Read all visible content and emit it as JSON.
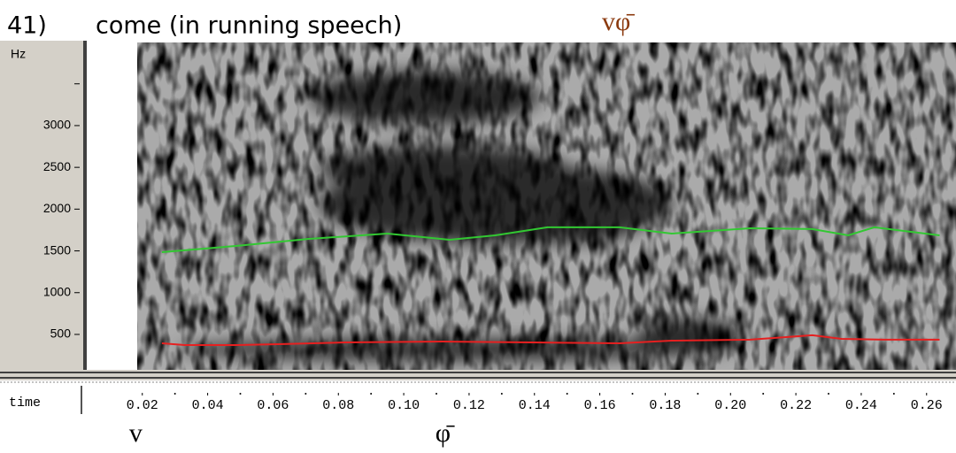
{
  "chart_data": {
    "type": "line",
    "number": "41)",
    "title": "come (in running speech)",
    "transcription": "vφ̄",
    "y_label": "Hz",
    "x_label": "time",
    "ylim": [
      76,
      3995
    ],
    "yticks": [
      500,
      1000,
      1500,
      2000,
      2500,
      3000,
      {
        "value": 3500,
        "label": null
      }
    ],
    "xlim": [
      0.003,
      0.269
    ],
    "xticks": [
      0.02,
      0.04,
      0.06,
      0.08,
      {
        "value": 0.1,
        "label": "0.10"
      },
      0.12,
      0.14,
      0.16,
      0.18,
      {
        "value": 0.2,
        "label": "0.20"
      },
      0.22,
      0.24,
      0.26
    ],
    "series": [
      {
        "color": "#32c832",
        "x": [
          0.026,
          0.049,
          0.071,
          0.095,
          0.114,
          0.128,
          0.144,
          0.166,
          0.182,
          0.206,
          0.225,
          0.236,
          0.244,
          0.264
        ],
        "values": [
          1485,
          1560,
          1644,
          1707,
          1633,
          1686,
          1782,
          1782,
          1707,
          1771,
          1761,
          1686,
          1782,
          1686
        ]
      },
      {
        "color": "#e62020",
        "x": [
          0.026,
          0.033,
          0.049,
          0.063,
          0.082,
          0.112,
          0.139,
          0.166,
          0.182,
          0.206,
          0.225,
          0.234,
          0.247,
          0.264
        ],
        "values": [
          394,
          373,
          373,
          384,
          404,
          415,
          404,
          394,
          426,
          437,
          490,
          447,
          437,
          437
        ]
      }
    ],
    "annotations": [
      {
        "text": "v",
        "x": 0.018
      },
      {
        "text": "φ̄",
        "x": 0.112
      }
    ]
  }
}
